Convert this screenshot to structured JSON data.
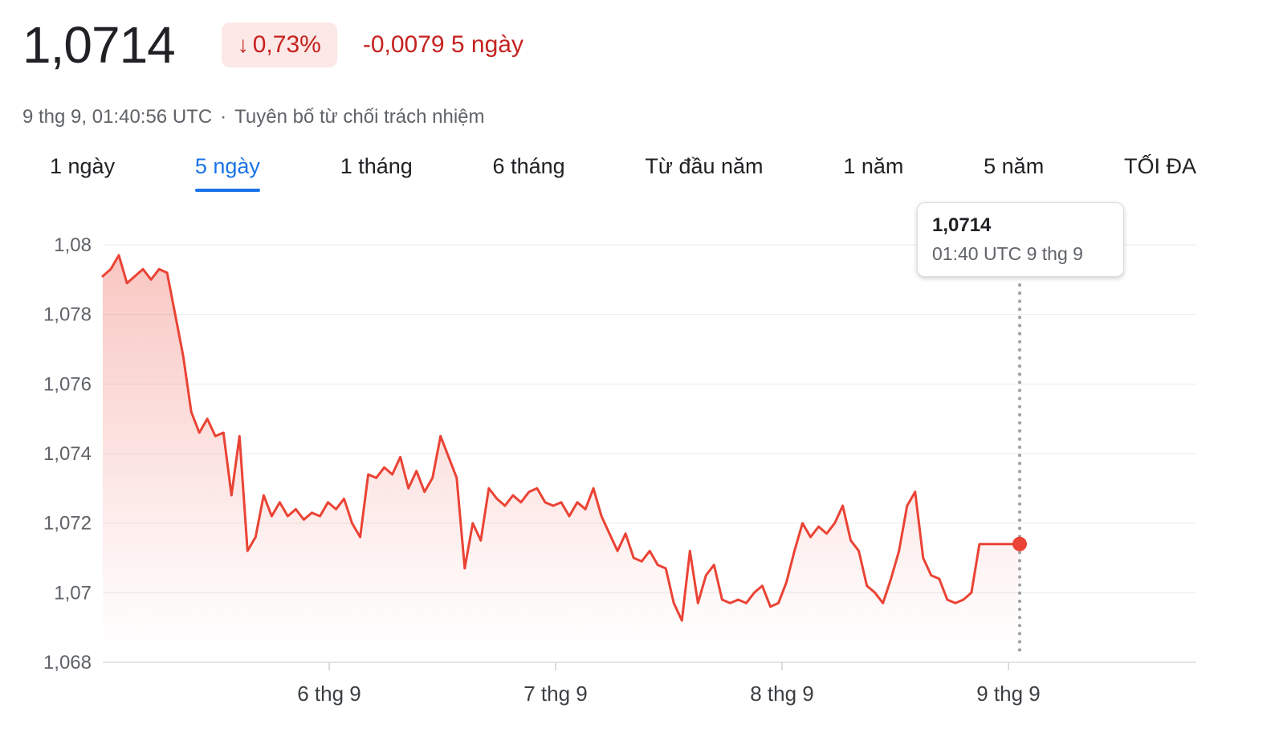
{
  "header": {
    "price": "1,0714",
    "change_arrow": "↓",
    "change_percent": "0,73%",
    "change_absolute": "-0,0079 5 ngày",
    "timestamp": "9 thg 9, 01:40:56 UTC",
    "separator": "·",
    "disclaimer": "Tuyên bố từ chối trách nhiệm"
  },
  "tabs": {
    "items": [
      {
        "label": "1 ngày",
        "active": false
      },
      {
        "label": "5 ngày",
        "active": true
      },
      {
        "label": "1 tháng",
        "active": false
      },
      {
        "label": "6 tháng",
        "active": false
      },
      {
        "label": "Từ đầu năm",
        "active": false
      },
      {
        "label": "1 năm",
        "active": false
      },
      {
        "label": "5 năm",
        "active": false
      },
      {
        "label": "TỐI ĐA",
        "active": false
      }
    ]
  },
  "tooltip": {
    "price": "1,0714",
    "time": "01:40 UTC 9 thg 9"
  },
  "colors": {
    "line": "#ea4335",
    "dot": "#ea4335",
    "down_text": "#c5221f",
    "badge_bg": "#fce8e6",
    "active_tab": "#1a73e8",
    "grid": "#ebebeb",
    "axis": "#dadce0",
    "cursor": "#9aa0a6",
    "text_primary": "#202124",
    "text_secondary": "#5f6368"
  },
  "chart_data": {
    "type": "line",
    "title": "",
    "xlabel": "",
    "ylabel": "",
    "legend": "none",
    "grid": true,
    "ylim": [
      1.068,
      1.08
    ],
    "y_ticks": {
      "values": [
        1.068,
        1.07,
        1.072,
        1.074,
        1.076,
        1.078,
        1.08
      ],
      "labels": [
        "1,068",
        "1,07",
        "1,072",
        "1,074",
        "1,076",
        "1,078",
        "1,08"
      ]
    },
    "x_ticks": {
      "labels": [
        "6 thg 9",
        "7 thg 9",
        "8 thg 9",
        "9 thg 9"
      ]
    },
    "series": [
      {
        "name": "5 ngày",
        "values": [
          1.0791,
          1.0793,
          1.0797,
          1.0789,
          1.0791,
          1.0793,
          1.079,
          1.0793,
          1.0792,
          1.078,
          1.0768,
          1.0752,
          1.0746,
          1.075,
          1.0745,
          1.0746,
          1.0728,
          1.0745,
          1.0712,
          1.0716,
          1.0728,
          1.0722,
          1.0726,
          1.0722,
          1.0724,
          1.0721,
          1.0723,
          1.0722,
          1.0726,
          1.0724,
          1.0727,
          1.072,
          1.0716,
          1.0734,
          1.0733,
          1.0736,
          1.0734,
          1.0739,
          1.073,
          1.0735,
          1.0729,
          1.0733,
          1.0745,
          1.0739,
          1.0733,
          1.0707,
          1.072,
          1.0715,
          1.073,
          1.0727,
          1.0725,
          1.0728,
          1.0726,
          1.0729,
          1.073,
          1.0726,
          1.0725,
          1.0726,
          1.0722,
          1.0726,
          1.0724,
          1.073,
          1.0722,
          1.0717,
          1.0712,
          1.0717,
          1.071,
          1.0709,
          1.0712,
          1.0708,
          1.0707,
          1.0697,
          1.0692,
          1.0712,
          1.0697,
          1.0705,
          1.0708,
          1.0698,
          1.0697,
          1.0698,
          1.0697,
          1.07,
          1.0702,
          1.0696,
          1.0697,
          1.0703,
          1.0712,
          1.072,
          1.0716,
          1.0719,
          1.0717,
          1.072,
          1.0725,
          1.0715,
          1.0712,
          1.0702,
          1.07,
          1.0697,
          1.0704,
          1.0712,
          1.0725,
          1.0729,
          1.071,
          1.0705,
          1.0704,
          1.0698,
          1.0697,
          1.0698,
          1.07,
          1.0714,
          1.0714,
          1.0714,
          1.0714,
          1.0714,
          1.0714
        ]
      }
    ],
    "last_point": {
      "value": 1.0714,
      "label": "1,0714",
      "time": "01:40 UTC 9 thg 9"
    }
  }
}
